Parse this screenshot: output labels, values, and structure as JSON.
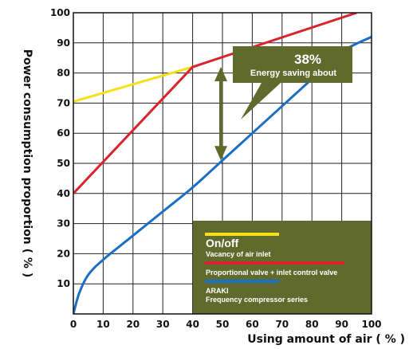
{
  "chart_data": {
    "type": "line",
    "xlabel": "Using amount of air ( % )",
    "ylabel": "Power consumption proportion ( % )",
    "xlim": [
      0,
      100
    ],
    "ylim": [
      0,
      100
    ],
    "xticks": [
      "0",
      "10",
      "20",
      "30",
      "40",
      "50",
      "60",
      "70",
      "80",
      "90",
      "100"
    ],
    "yticks": [
      "10",
      "20",
      "30",
      "40",
      "50",
      "60",
      "70",
      "80",
      "90",
      "100"
    ],
    "grid": true,
    "series": [
      {
        "name": "On/off",
        "subtitle": "Vacancy of air inlet",
        "color": "#f5e01a",
        "points": [
          [
            0,
            70.5
          ],
          [
            40,
            82
          ]
        ]
      },
      {
        "name": "Proportional valve + inlet control valve",
        "subtitle": "",
        "color": "#d9232d",
        "points": [
          [
            0,
            40
          ],
          [
            40,
            82
          ],
          [
            95,
            100
          ]
        ]
      },
      {
        "name": "ARAKI",
        "subtitle": "Frequency compressor series",
        "color": "#1a6fc4",
        "points": [
          [
            0,
            0
          ],
          [
            2,
            7
          ],
          [
            5,
            13
          ],
          [
            10,
            18
          ],
          [
            20,
            26
          ],
          [
            30,
            34
          ],
          [
            40,
            42
          ],
          [
            50,
            51
          ],
          [
            60,
            60
          ],
          [
            70,
            69
          ],
          [
            80,
            78
          ],
          [
            90,
            87
          ],
          [
            100,
            92
          ]
        ]
      }
    ],
    "annotation": {
      "percent": "38%",
      "text": "Energy saving about",
      "arrow_x": 50,
      "arrow_from": 82,
      "arrow_to": 51
    },
    "colors": {
      "panel": "#5f6a2c",
      "panel_dark": "#556126",
      "arrow": "#5f6a2c"
    }
  }
}
